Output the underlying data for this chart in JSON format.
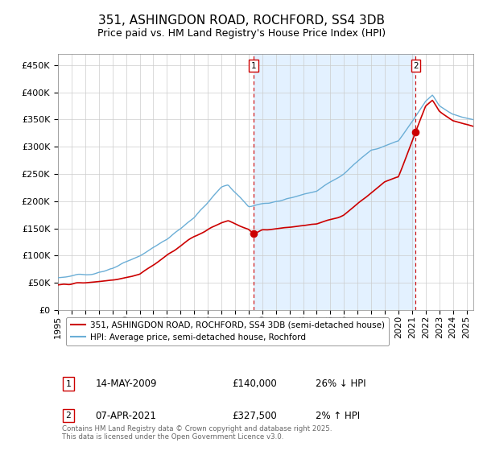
{
  "title": "351, ASHINGDON ROAD, ROCHFORD, SS4 3DB",
  "subtitle": "Price paid vs. HM Land Registry's House Price Index (HPI)",
  "ylabel_ticks": [
    "£0",
    "£50K",
    "£100K",
    "£150K",
    "£200K",
    "£250K",
    "£300K",
    "£350K",
    "£400K",
    "£450K"
  ],
  "ytick_values": [
    0,
    50000,
    100000,
    150000,
    200000,
    250000,
    300000,
    350000,
    400000,
    450000
  ],
  "ylim": [
    0,
    470000
  ],
  "xlim_start": 1995.0,
  "xlim_end": 2025.5,
  "hpi_color": "#6baed6",
  "price_color": "#cc0000",
  "bg_fill_color": "#ddeeff",
  "marker1_date": 2009.37,
  "marker1_price": 140000,
  "marker1_label": "14-MAY-2009",
  "marker1_price_label": "£140,000",
  "marker1_hpi_pct": "26% ↓ HPI",
  "marker2_date": 2021.27,
  "marker2_price": 327500,
  "marker2_label": "07-APR-2021",
  "marker2_price_label": "£327,500",
  "marker2_hpi_pct": "2% ↑ HPI",
  "legend_line1": "351, ASHINGDON ROAD, ROCHFORD, SS4 3DB (semi-detached house)",
  "legend_line2": "HPI: Average price, semi-detached house, Rochford",
  "footnote": "Contains HM Land Registry data © Crown copyright and database right 2025.\nThis data is licensed under the Open Government Licence v3.0.",
  "grid_color": "#cccccc",
  "title_fontsize": 11,
  "tick_fontsize": 8,
  "hpi_waypoints_t": [
    1995,
    1997,
    1999,
    2001,
    2003,
    2005,
    2007,
    2007.5,
    2009,
    2010,
    2012,
    2014,
    2016,
    2018,
    2020,
    2021,
    2022,
    2022.5,
    2023,
    2024,
    2025.5
  ],
  "hpi_waypoints_v": [
    60000,
    65000,
    75000,
    100000,
    130000,
    170000,
    225000,
    230000,
    190000,
    195000,
    205000,
    220000,
    250000,
    295000,
    310000,
    345000,
    385000,
    395000,
    375000,
    360000,
    350000
  ],
  "price_waypoints_t": [
    1995,
    1997,
    1999,
    2001,
    2003,
    2005,
    2007,
    2007.5,
    2009.0,
    2009.37,
    2010,
    2012,
    2014,
    2015,
    2016,
    2017,
    2018,
    2019,
    2020,
    2021.27,
    2022,
    2022.5,
    2023,
    2024,
    2025.5
  ],
  "price_waypoints_v": [
    46000,
    50000,
    55000,
    65000,
    100000,
    135000,
    160000,
    165000,
    148000,
    140000,
    148000,
    152000,
    158000,
    165000,
    175000,
    195000,
    215000,
    235000,
    245000,
    327500,
    375000,
    385000,
    365000,
    348000,
    338000
  ]
}
